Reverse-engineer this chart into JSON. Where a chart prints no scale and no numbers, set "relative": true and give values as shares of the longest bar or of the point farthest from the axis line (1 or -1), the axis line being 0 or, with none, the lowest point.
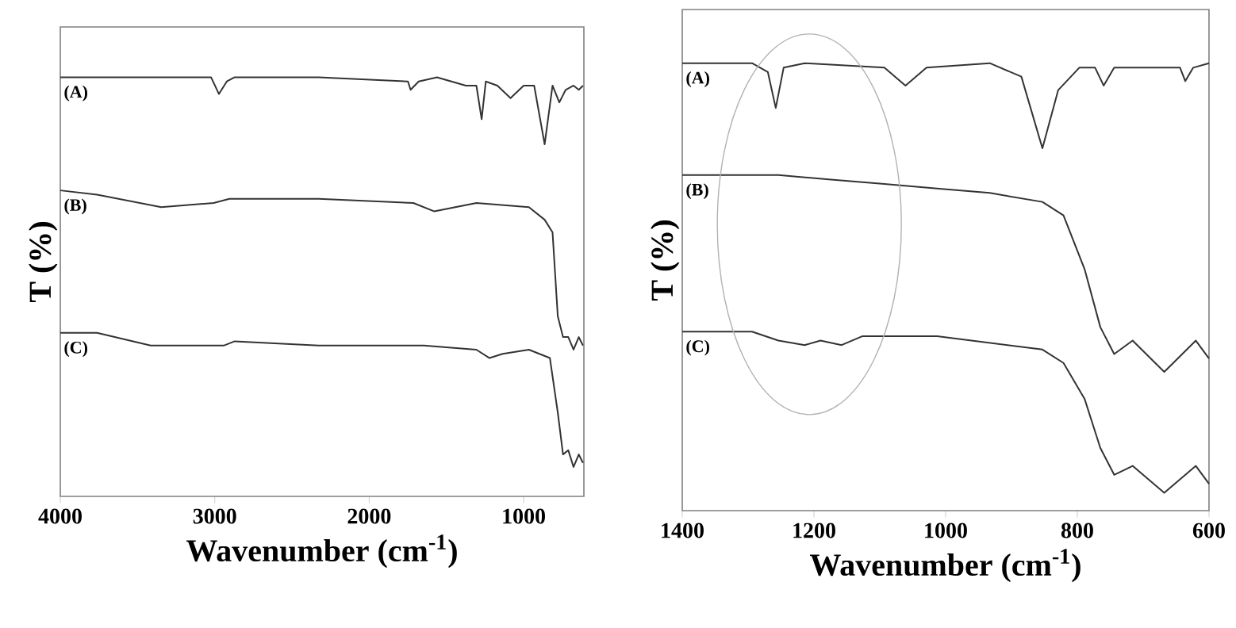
{
  "chart_data": [
    {
      "type": "line",
      "relative": true,
      "xlabel": "Wavenumber (cm$^{-1}$)",
      "ylabel": "T (%)",
      "xlim": [
        4000,
        610
      ],
      "xticks": [
        4000,
        3000,
        2000,
        1000
      ],
      "grid": false,
      "legend": false,
      "series": [
        {
          "name": "(A)",
          "color": "#333333",
          "x": [
            4000,
            3024,
            2973,
            2922,
            2871,
            2327,
            1749,
            1732,
            1680,
            1561,
            1374,
            1306,
            1272,
            1245,
            1170,
            1085,
            1000,
            932,
            864,
            813,
            769,
            728,
            677,
            643,
            616
          ],
          "values": [
            1.0,
            1.0,
            0.96,
            0.99,
            1.0,
            1.0,
            0.99,
            0.97,
            0.99,
            1.0,
            0.98,
            0.98,
            0.9,
            0.99,
            0.98,
            0.95,
            0.98,
            0.98,
            0.84,
            0.98,
            0.94,
            0.97,
            0.98,
            0.97,
            0.98
          ]
        },
        {
          "name": "(B)",
          "color": "#333333",
          "x": [
            4000,
            3762,
            3347,
            3007,
            2905,
            2327,
            1714,
            1578,
            1306,
            966,
            864,
            813,
            779,
            745,
            711,
            677,
            643,
            616
          ],
          "values": [
            0.73,
            0.72,
            0.69,
            0.7,
            0.71,
            0.71,
            0.7,
            0.68,
            0.7,
            0.69,
            0.66,
            0.63,
            0.43,
            0.38,
            0.38,
            0.35,
            0.38,
            0.36
          ]
        },
        {
          "name": "(C)",
          "color": "#333333",
          "x": [
            4000,
            3762,
            3415,
            2939,
            2871,
            2327,
            1646,
            1306,
            1221,
            1136,
            966,
            830,
            779,
            745,
            711,
            677,
            643,
            616
          ],
          "values": [
            0.39,
            0.39,
            0.36,
            0.36,
            0.37,
            0.36,
            0.36,
            0.35,
            0.33,
            0.34,
            0.35,
            0.33,
            0.2,
            0.1,
            0.11,
            0.07,
            0.1,
            0.08
          ]
        }
      ]
    },
    {
      "type": "line",
      "relative": true,
      "xlabel": "Wavenumber (cm$^{-1}$)",
      "ylabel": "T (%)",
      "xlim": [
        1400,
        600
      ],
      "xticks": [
        1400,
        1200,
        1000,
        800,
        600
      ],
      "grid": false,
      "legend": false,
      "series": [
        {
          "name": "(A)",
          "color": "#333333",
          "x": [
            1400,
            1294,
            1270,
            1258,
            1246,
            1214,
            1093,
            1061,
            1029,
            933,
            885,
            853,
            829,
            797,
            773,
            760,
            744,
            692,
            644,
            636,
            624,
            600
          ],
          "values": [
            1.0,
            1.0,
            0.98,
            0.9,
            0.99,
            1.0,
            0.99,
            0.95,
            0.99,
            1.0,
            0.97,
            0.81,
            0.94,
            0.99,
            0.99,
            0.95,
            0.99,
            0.99,
            0.99,
            0.96,
            0.99,
            1.0
          ]
        },
        {
          "name": "(B)",
          "color": "#333333",
          "x": [
            1400,
            1254,
            1174,
            1093,
            1013,
            933,
            853,
            821,
            789,
            765,
            744,
            716,
            668,
            620,
            600
          ],
          "values": [
            0.75,
            0.75,
            0.74,
            0.73,
            0.72,
            0.71,
            0.69,
            0.66,
            0.54,
            0.41,
            0.35,
            0.38,
            0.31,
            0.38,
            0.34
          ]
        },
        {
          "name": "(C)",
          "color": "#333333",
          "x": [
            1400,
            1294,
            1254,
            1214,
            1190,
            1158,
            1126,
            1013,
            853,
            821,
            789,
            765,
            744,
            716,
            668,
            620,
            600
          ],
          "values": [
            0.4,
            0.4,
            0.38,
            0.37,
            0.38,
            0.37,
            0.39,
            0.39,
            0.36,
            0.33,
            0.25,
            0.14,
            0.08,
            0.1,
            0.04,
            0.1,
            0.06
          ]
        }
      ]
    }
  ]
}
